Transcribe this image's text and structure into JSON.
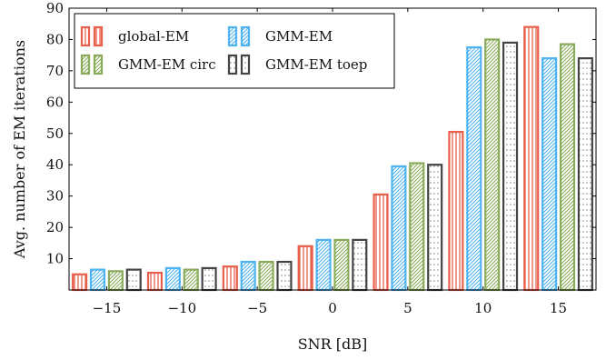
{
  "chart_data": {
    "type": "bar",
    "xlabel": "SNR [dB]",
    "ylabel": "Avg. number of EM iterations",
    "categories": [
      -15,
      -10,
      -5,
      0,
      5,
      10,
      15
    ],
    "x_tick_labels": [
      "−15",
      "−10",
      "−5",
      "0",
      "5",
      "10",
      "15"
    ],
    "xlim": [
      -17.5,
      17.5
    ],
    "ylim": [
      0,
      90
    ],
    "y_ticks": [
      10,
      20,
      30,
      40,
      50,
      60,
      70,
      80,
      90
    ],
    "grid": false,
    "legend_position": "top-left",
    "legend_columns": 2,
    "series": [
      {
        "name": "global-EM",
        "color": "#e8604c",
        "pattern": "vertical",
        "values": [
          5,
          5.5,
          7.5,
          14,
          30.5,
          50.5,
          84
        ]
      },
      {
        "name": "GMM-EM",
        "color": "#4fb3f0",
        "pattern": "diagonal",
        "values": [
          6.5,
          7,
          9,
          16,
          39.5,
          77.5,
          74
        ]
      },
      {
        "name": "GMM-EM circ",
        "color": "#8aab5a",
        "pattern": "diagonal",
        "values": [
          6,
          6.5,
          9,
          16,
          40.5,
          80,
          78.5
        ]
      },
      {
        "name": "GMM-EM toep",
        "color": "#444444",
        "pattern": "dots",
        "values": [
          6.5,
          7,
          9,
          16,
          40,
          79,
          74
        ]
      }
    ]
  }
}
